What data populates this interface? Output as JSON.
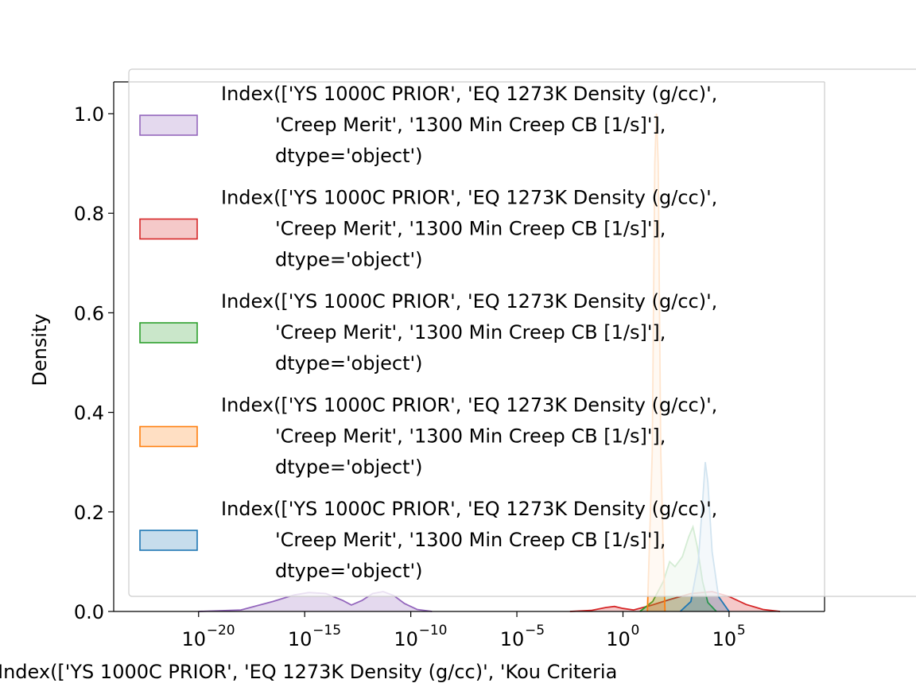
{
  "chart_data": {
    "type": "area",
    "xscale": "log",
    "xlabel": "Index(['YS 1000C PRIOR', 'EQ 1273K Density (g/cc)', 'Kou Criteria",
    "ylabel": "Density",
    "xlim_log10": [
      -24,
      9.5
    ],
    "ylim": [
      0,
      1.05
    ],
    "x_ticks": [
      {
        "exp": -20,
        "label": "−20"
      },
      {
        "exp": -15,
        "label": "−15"
      },
      {
        "exp": -10,
        "label": "−10"
      },
      {
        "exp": -5,
        "label": "−5"
      },
      {
        "exp": 0,
        "label": "0"
      },
      {
        "exp": 5,
        "label": "5"
      }
    ],
    "y_ticks": [
      {
        "value": 0.0,
        "label": "0.0"
      },
      {
        "value": 0.2,
        "label": "0.2"
      },
      {
        "value": 0.4,
        "label": "0.4"
      },
      {
        "value": 0.6,
        "label": "0.6"
      },
      {
        "value": 0.8,
        "label": "0.8"
      },
      {
        "value": 1.0,
        "label": "1.0"
      }
    ],
    "legend_position": "upper-left",
    "legend_entries": [
      {
        "lines": [
          "Index(['YS 1000C PRIOR', 'EQ 1273K Density (g/cc)',",
          " 'Creep Merit', '1300 Min Creep CB [1/s]'],",
          "dtype='object')"
        ],
        "color": "#9467bd"
      },
      {
        "lines": [
          "Index(['YS 1000C PRIOR', 'EQ 1273K Density (g/cc)',",
          " 'Creep Merit', '1300 Min Creep CB [1/s]'],",
          "dtype='object')"
        ],
        "color": "#d62728"
      },
      {
        "lines": [
          "Index(['YS 1000C PRIOR', 'EQ 1273K Density (g/cc)',",
          " 'Creep Merit', '1300 Min Creep CB [1/s]'],",
          "dtype='object')"
        ],
        "color": "#2ca02c"
      },
      {
        "lines": [
          "Index(['YS 1000C PRIOR', 'EQ 1273K Density (g/cc)',",
          " 'Creep Merit', '1300 Min Creep CB [1/s]'],",
          "dtype='object')"
        ],
        "color": "#ff7f0e"
      },
      {
        "lines": [
          "Index(['YS 1000C PRIOR', 'EQ 1273K Density (g/cc)',",
          " 'Creep Merit', '1300 Min Creep CB [1/s]'],",
          "dtype='object')"
        ],
        "color": "#1f77b4"
      }
    ],
    "series": [
      {
        "color": "#9467bd",
        "points": [
          [
            -20,
            0
          ],
          [
            -18,
            0.003
          ],
          [
            -16.5,
            0.02
          ],
          [
            -15.5,
            0.033
          ],
          [
            -14.8,
            0.038
          ],
          [
            -14,
            0.036
          ],
          [
            -13.2,
            0.022
          ],
          [
            -12.8,
            0.013
          ],
          [
            -12.3,
            0.022
          ],
          [
            -11.8,
            0.036
          ],
          [
            -11.3,
            0.04
          ],
          [
            -10.8,
            0.032
          ],
          [
            -10.3,
            0.016
          ],
          [
            -9.7,
            0.004
          ],
          [
            -9,
            0
          ]
        ]
      },
      {
        "color": "#d62728",
        "points": [
          [
            -2.5,
            0
          ],
          [
            -1.5,
            0.002
          ],
          [
            -0.8,
            0.008
          ],
          [
            -0.4,
            0.01
          ],
          [
            0,
            0.006
          ],
          [
            0.5,
            0.003
          ],
          [
            1.3,
            0.012
          ],
          [
            2.2,
            0.024
          ],
          [
            3.2,
            0.036
          ],
          [
            4.2,
            0.04
          ],
          [
            5.0,
            0.03
          ],
          [
            5.8,
            0.014
          ],
          [
            6.6,
            0.004
          ],
          [
            7.4,
            0
          ]
        ]
      },
      {
        "color": "#2ca02c",
        "points": [
          [
            0.8,
            0
          ],
          [
            1.4,
            0.02
          ],
          [
            1.9,
            0.06
          ],
          [
            2.2,
            0.1
          ],
          [
            2.45,
            0.09
          ],
          [
            2.8,
            0.11
          ],
          [
            3.1,
            0.15
          ],
          [
            3.3,
            0.17
          ],
          [
            3.5,
            0.13
          ],
          [
            3.75,
            0.06
          ],
          [
            4.0,
            0.018
          ],
          [
            4.4,
            0
          ]
        ]
      },
      {
        "color": "#ff7f0e",
        "points": [
          [
            1.15,
            0
          ],
          [
            1.38,
            0.32
          ],
          [
            1.5,
            0.9
          ],
          [
            1.58,
            1.0
          ],
          [
            1.66,
            0.9
          ],
          [
            1.78,
            0.32
          ],
          [
            1.98,
            0
          ]
        ]
      },
      {
        "color": "#1f77b4",
        "points": [
          [
            2.7,
            0
          ],
          [
            3.2,
            0.02
          ],
          [
            3.55,
            0.1
          ],
          [
            3.75,
            0.22
          ],
          [
            3.88,
            0.3
          ],
          [
            4.0,
            0.26
          ],
          [
            4.2,
            0.12
          ],
          [
            4.5,
            0.03
          ],
          [
            5.0,
            0
          ]
        ]
      }
    ]
  }
}
